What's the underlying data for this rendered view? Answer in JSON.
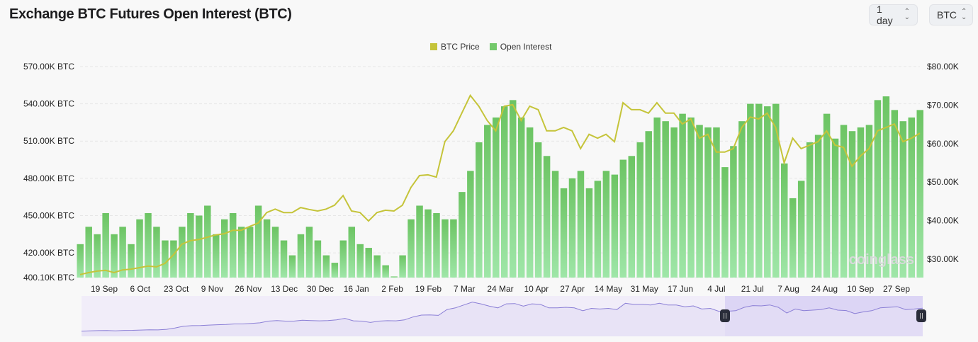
{
  "header": {
    "title": "Exchange BTC Futures Open Interest (BTC)",
    "interval_select": "1 day",
    "unit_select": "BTC"
  },
  "watermark": "coinglass",
  "colors": {
    "btc_price": "#c5c43a",
    "open_interest": "#74c96b",
    "navigator_line": "#8b7fd6",
    "navigator_fill": "#e4def5"
  },
  "chart_data": {
    "type": "bar+line",
    "title": "Exchange BTC Futures Open Interest (BTC)",
    "legend": {
      "position": "top-center",
      "entries": [
        "BTC Price",
        "Open Interest"
      ]
    },
    "grid": true,
    "x_tick_labels": [
      "19 Sep",
      "6 Oct",
      "23 Oct",
      "9 Nov",
      "26 Nov",
      "13 Dec",
      "30 Dec",
      "16 Jan",
      "2 Feb",
      "19 Feb",
      "7 Mar",
      "24 Mar",
      "10 Apr",
      "27 Apr",
      "14 May",
      "31 May",
      "17 Jun",
      "4 Jul",
      "21 Jul",
      "7 Aug",
      "24 Aug",
      "10 Sep",
      "27 Sep"
    ],
    "y_left": {
      "tick_labels": [
        "570.00K BTC",
        "540.00K BTC",
        "510.00K BTC",
        "480.00K BTC",
        "450.00K BTC",
        "420.00K BTC",
        "400.10K BTC"
      ],
      "ticks": [
        570,
        540,
        510,
        480,
        450,
        420,
        400.1
      ],
      "range": [
        400.1,
        570
      ],
      "unit": "K BTC"
    },
    "y_right": {
      "tick_labels": [
        "$80.00K",
        "$70.00K",
        "$60.00K",
        "$50.00K",
        "$40.00K",
        "$30.00K"
      ],
      "ticks": [
        80,
        70,
        60,
        50,
        40,
        30
      ],
      "range": [
        25.1,
        80
      ],
      "unit": "K USD"
    },
    "x": [
      "2023-09-08",
      "2023-09-12",
      "2023-09-16",
      "2023-09-20",
      "2023-09-24",
      "2023-09-28",
      "2023-10-02",
      "2023-10-06",
      "2023-10-10",
      "2023-10-14",
      "2023-10-18",
      "2023-10-22",
      "2023-10-26",
      "2023-10-30",
      "2023-11-03",
      "2023-11-07",
      "2023-11-11",
      "2023-11-15",
      "2023-11-19",
      "2023-11-23",
      "2023-11-27",
      "2023-12-01",
      "2023-12-05",
      "2023-12-09",
      "2023-12-13",
      "2023-12-17",
      "2023-12-21",
      "2023-12-25",
      "2023-12-29",
      "2024-01-02",
      "2024-01-06",
      "2024-01-10",
      "2024-01-14",
      "2024-01-18",
      "2024-01-22",
      "2024-01-26",
      "2024-01-30",
      "2024-02-03",
      "2024-02-07",
      "2024-02-11",
      "2024-02-15",
      "2024-02-19",
      "2024-02-23",
      "2024-02-27",
      "2024-03-02",
      "2024-03-06",
      "2024-03-10",
      "2024-03-14",
      "2024-03-18",
      "2024-03-22",
      "2024-03-26",
      "2024-03-30",
      "2024-04-03",
      "2024-04-07",
      "2024-04-11",
      "2024-04-15",
      "2024-04-19",
      "2024-04-23",
      "2024-04-27",
      "2024-05-01",
      "2024-05-05",
      "2024-05-09",
      "2024-05-13",
      "2024-05-17",
      "2024-05-21",
      "2024-05-25",
      "2024-05-29",
      "2024-06-02",
      "2024-06-06",
      "2024-06-10",
      "2024-06-14",
      "2024-06-18",
      "2024-06-22",
      "2024-06-26",
      "2024-06-30",
      "2024-07-04",
      "2024-07-08",
      "2024-07-12",
      "2024-07-16",
      "2024-07-20",
      "2024-07-24",
      "2024-07-28",
      "2024-08-01",
      "2024-08-05",
      "2024-08-09",
      "2024-08-13",
      "2024-08-17",
      "2024-08-21",
      "2024-08-25",
      "2024-08-29",
      "2024-09-02",
      "2024-09-06",
      "2024-09-10",
      "2024-09-14",
      "2024-09-18",
      "2024-09-22",
      "2024-09-26",
      "2024-09-30",
      "2024-10-04",
      "2024-10-08"
    ],
    "series": [
      {
        "name": "Open Interest",
        "type": "bar",
        "axis": "left",
        "values": [
          427,
          441,
          435,
          452,
          435,
          441,
          427,
          447,
          452,
          441,
          430,
          430,
          441,
          452,
          450,
          458,
          435,
          447,
          452,
          441,
          441,
          458,
          447,
          441,
          430,
          418,
          435,
          441,
          430,
          418,
          412,
          430,
          441,
          427,
          424,
          418,
          410,
          401,
          418,
          447,
          458,
          455,
          452,
          447,
          447,
          469,
          486,
          509,
          523,
          529,
          538,
          543,
          529,
          521,
          509,
          498,
          486,
          472,
          480,
          486,
          472,
          478,
          486,
          483,
          495,
          498,
          509,
          518,
          529,
          526,
          521,
          532,
          529,
          523,
          521,
          521,
          489,
          506,
          526,
          540,
          540,
          538,
          540,
          492,
          464,
          478,
          509,
          515,
          532,
          512,
          523,
          518,
          521,
          523,
          543,
          546,
          535,
          526,
          529,
          535
        ]
      },
      {
        "name": "BTC Price",
        "type": "line",
        "axis": "right",
        "values": [
          26,
          26.5,
          26.9,
          27.1,
          26.5,
          27.2,
          27.4,
          27.8,
          28.2,
          28,
          28.9,
          31.1,
          33.9,
          34.8,
          35.1,
          35.7,
          36.3,
          36.6,
          37.5,
          37.5,
          38.5,
          39.4,
          42.1,
          43,
          42.1,
          42.1,
          43.4,
          42.9,
          42.5,
          43,
          44,
          46.5,
          42.5,
          42.1,
          39.9,
          42.1,
          42.7,
          42.5,
          44,
          48.6,
          51.7,
          51.9,
          51.3,
          60.5,
          63.3,
          67.9,
          72.5,
          69.7,
          66,
          63.3,
          69.7,
          70.1,
          66,
          69.7,
          68.8,
          63.3,
          63.3,
          64.2,
          63.3,
          58.7,
          62.4,
          61.4,
          62.4,
          60.5,
          70.6,
          68.8,
          68.8,
          67.9,
          70.6,
          67.9,
          67.9,
          65.1,
          66.4,
          61.4,
          62.4,
          57.8,
          57.8,
          58.7,
          64.2,
          66.9,
          66.4,
          67.9,
          64.2,
          55,
          61.4,
          58.7,
          59.6,
          60.5,
          63.3,
          59.6,
          59,
          54.1,
          56.8,
          58.7,
          63.3,
          64.2,
          65.1,
          60.5,
          61.4,
          62.7
        ]
      }
    ]
  }
}
